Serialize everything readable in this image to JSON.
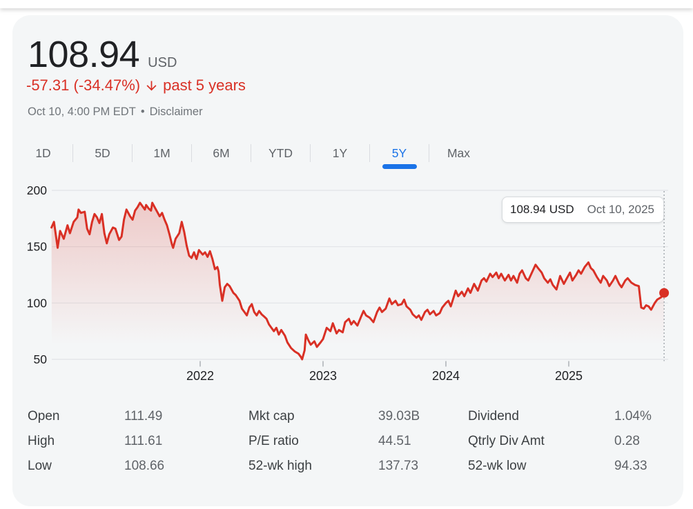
{
  "header": {
    "price": "108.94",
    "currency": "USD",
    "change_text": "-57.31 (-34.47%)",
    "change_arrow_icon": "arrow-down",
    "change_period": "past 5 years",
    "change_color": "#d93025",
    "timestamp": "Oct 10, 4:00 PM EDT",
    "separator": "•",
    "disclaimer_label": "Disclaimer"
  },
  "tabs": {
    "accent_color": "#1a73e8",
    "items": [
      {
        "label": "1D",
        "selected": false
      },
      {
        "label": "5D",
        "selected": false
      },
      {
        "label": "1M",
        "selected": false
      },
      {
        "label": "6M",
        "selected": false
      },
      {
        "label": "YTD",
        "selected": false
      },
      {
        "label": "1Y",
        "selected": false
      },
      {
        "label": "5Y",
        "selected": true
      },
      {
        "label": "Max",
        "selected": false
      }
    ]
  },
  "tooltip": {
    "price": "108.94 USD",
    "date": "Oct 10, 2025"
  },
  "chart_data": {
    "type": "line",
    "x_unit": "decimal-year",
    "xlim": [
      2020.79,
      2025.79
    ],
    "ylim": [
      50,
      200
    ],
    "grid": true,
    "y_ticks": [
      200,
      150,
      100,
      50
    ],
    "x_ticks": [
      {
        "t": 2022,
        "label": "2022"
      },
      {
        "t": 2023,
        "label": "2023"
      },
      {
        "t": 2024,
        "label": "2024"
      },
      {
        "t": 2025,
        "label": "2025"
      }
    ],
    "line_color": "#d93025",
    "grid_color": "#e1e4e7",
    "tick_color": "#9aa0a6",
    "cursor": {
      "t": 2025.776,
      "price": 108.94,
      "date": "Oct 10, 2025"
    },
    "series": [
      {
        "name": "Price (USD)",
        "points": [
          [
            2020.79,
            167
          ],
          [
            2020.81,
            172
          ],
          [
            2020.84,
            149
          ],
          [
            2020.86,
            164
          ],
          [
            2020.89,
            157
          ],
          [
            2020.92,
            169
          ],
          [
            2020.94,
            162
          ],
          [
            2020.97,
            172
          ],
          [
            2021.0,
            176
          ],
          [
            2021.01,
            183
          ],
          [
            2021.03,
            180
          ],
          [
            2021.06,
            181
          ],
          [
            2021.08,
            166
          ],
          [
            2021.1,
            161
          ],
          [
            2021.12,
            172
          ],
          [
            2021.14,
            179
          ],
          [
            2021.16,
            176
          ],
          [
            2021.18,
            171
          ],
          [
            2021.2,
            179
          ],
          [
            2021.22,
            162
          ],
          [
            2021.24,
            153
          ],
          [
            2021.26,
            161
          ],
          [
            2021.29,
            167
          ],
          [
            2021.31,
            166
          ],
          [
            2021.34,
            156
          ],
          [
            2021.36,
            159
          ],
          [
            2021.38,
            174
          ],
          [
            2021.4,
            183
          ],
          [
            2021.43,
            177
          ],
          [
            2021.45,
            174
          ],
          [
            2021.47,
            182
          ],
          [
            2021.49,
            185
          ],
          [
            2021.51,
            189
          ],
          [
            2021.53,
            186
          ],
          [
            2021.55,
            183
          ],
          [
            2021.56,
            187
          ],
          [
            2021.58,
            184
          ],
          [
            2021.6,
            182
          ],
          [
            2021.61,
            189
          ],
          [
            2021.63,
            185
          ],
          [
            2021.65,
            181
          ],
          [
            2021.67,
            177
          ],
          [
            2021.69,
            180
          ],
          [
            2021.71,
            174
          ],
          [
            2021.73,
            169
          ],
          [
            2021.75,
            161
          ],
          [
            2021.77,
            152
          ],
          [
            2021.78,
            149
          ],
          [
            2021.8,
            157
          ],
          [
            2021.83,
            162
          ],
          [
            2021.85,
            172
          ],
          [
            2021.87,
            163
          ],
          [
            2021.89,
            151
          ],
          [
            2021.91,
            142
          ],
          [
            2021.93,
            140
          ],
          [
            2021.95,
            145
          ],
          [
            2021.97,
            139
          ],
          [
            2021.99,
            147
          ],
          [
            2022.02,
            143
          ],
          [
            2022.04,
            145
          ],
          [
            2022.06,
            141
          ],
          [
            2022.08,
            146
          ],
          [
            2022.1,
            139
          ],
          [
            2022.12,
            130
          ],
          [
            2022.14,
            132
          ],
          [
            2022.15,
            128
          ],
          [
            2022.16,
            116
          ],
          [
            2022.18,
            102
          ],
          [
            2022.2,
            114
          ],
          [
            2022.22,
            117
          ],
          [
            2022.24,
            115
          ],
          [
            2022.27,
            109
          ],
          [
            2022.29,
            107
          ],
          [
            2022.32,
            102
          ],
          [
            2022.34,
            95
          ],
          [
            2022.36,
            92
          ],
          [
            2022.38,
            89
          ],
          [
            2022.4,
            96
          ],
          [
            2022.42,
            99
          ],
          [
            2022.44,
            92
          ],
          [
            2022.46,
            89
          ],
          [
            2022.48,
            93
          ],
          [
            2022.5,
            90
          ],
          [
            2022.52,
            88
          ],
          [
            2022.54,
            86
          ],
          [
            2022.56,
            81
          ],
          [
            2022.58,
            78
          ],
          [
            2022.6,
            75
          ],
          [
            2022.62,
            78
          ],
          [
            2022.64,
            72
          ],
          [
            2022.66,
            76
          ],
          [
            2022.69,
            71
          ],
          [
            2022.71,
            65
          ],
          [
            2022.74,
            60
          ],
          [
            2022.77,
            57
          ],
          [
            2022.8,
            55
          ],
          [
            2022.82,
            52
          ],
          [
            2022.83,
            50
          ],
          [
            2022.85,
            58
          ],
          [
            2022.86,
            72
          ],
          [
            2022.88,
            67
          ],
          [
            2022.9,
            63
          ],
          [
            2022.93,
            66
          ],
          [
            2022.95,
            61
          ],
          [
            2022.98,
            65
          ],
          [
            2023.0,
            68
          ],
          [
            2023.03,
            78
          ],
          [
            2023.06,
            75
          ],
          [
            2023.08,
            82
          ],
          [
            2023.11,
            73
          ],
          [
            2023.13,
            76
          ],
          [
            2023.16,
            74
          ],
          [
            2023.18,
            83
          ],
          [
            2023.21,
            86
          ],
          [
            2023.23,
            81
          ],
          [
            2023.25,
            84
          ],
          [
            2023.28,
            80
          ],
          [
            2023.31,
            88
          ],
          [
            2023.33,
            93
          ],
          [
            2023.35,
            89
          ],
          [
            2023.38,
            87
          ],
          [
            2023.41,
            83
          ],
          [
            2023.44,
            92
          ],
          [
            2023.46,
            96
          ],
          [
            2023.48,
            92
          ],
          [
            2023.51,
            95
          ],
          [
            2023.54,
            104
          ],
          [
            2023.56,
            99
          ],
          [
            2023.59,
            102
          ],
          [
            2023.61,
            98
          ],
          [
            2023.64,
            99
          ],
          [
            2023.66,
            103
          ],
          [
            2023.68,
            97
          ],
          [
            2023.71,
            94
          ],
          [
            2023.73,
            90
          ],
          [
            2023.76,
            87
          ],
          [
            2023.78,
            89
          ],
          [
            2023.8,
            85
          ],
          [
            2023.83,
            92
          ],
          [
            2023.85,
            94
          ],
          [
            2023.87,
            90
          ],
          [
            2023.9,
            93
          ],
          [
            2023.92,
            89
          ],
          [
            2023.95,
            91
          ],
          [
            2023.97,
            96
          ],
          [
            2024.0,
            100
          ],
          [
            2024.02,
            102
          ],
          [
            2024.04,
            97
          ],
          [
            2024.06,
            104
          ],
          [
            2024.08,
            111
          ],
          [
            2024.1,
            106
          ],
          [
            2024.13,
            110
          ],
          [
            2024.15,
            106
          ],
          [
            2024.18,
            113
          ],
          [
            2024.2,
            109
          ],
          [
            2024.23,
            117
          ],
          [
            2024.26,
            111
          ],
          [
            2024.29,
            120
          ],
          [
            2024.31,
            122
          ],
          [
            2024.33,
            119
          ],
          [
            2024.36,
            126
          ],
          [
            2024.38,
            123
          ],
          [
            2024.41,
            127
          ],
          [
            2024.43,
            122
          ],
          [
            2024.45,
            126
          ],
          [
            2024.48,
            120
          ],
          [
            2024.51,
            125
          ],
          [
            2024.53,
            120
          ],
          [
            2024.55,
            124
          ],
          [
            2024.58,
            118
          ],
          [
            2024.6,
            126
          ],
          [
            2024.62,
            129
          ],
          [
            2024.65,
            122
          ],
          [
            2024.67,
            120
          ],
          [
            2024.7,
            127
          ],
          [
            2024.73,
            134
          ],
          [
            2024.75,
            131
          ],
          [
            2024.78,
            127
          ],
          [
            2024.8,
            122
          ],
          [
            2024.83,
            118
          ],
          [
            2024.85,
            121
          ],
          [
            2024.87,
            116
          ],
          [
            2024.9,
            112
          ],
          [
            2024.93,
            124
          ],
          [
            2024.96,
            117
          ],
          [
            2024.98,
            121
          ],
          [
            2025.01,
            127
          ],
          [
            2025.03,
            120
          ],
          [
            2025.06,
            125
          ],
          [
            2025.08,
            129
          ],
          [
            2025.1,
            126
          ],
          [
            2025.13,
            132
          ],
          [
            2025.16,
            136
          ],
          [
            2025.18,
            131
          ],
          [
            2025.2,
            129
          ],
          [
            2025.23,
            123
          ],
          [
            2025.26,
            118
          ],
          [
            2025.28,
            124
          ],
          [
            2025.31,
            120
          ],
          [
            2025.33,
            115
          ],
          [
            2025.36,
            120
          ],
          [
            2025.38,
            124
          ],
          [
            2025.41,
            117
          ],
          [
            2025.43,
            114
          ],
          [
            2025.46,
            120
          ],
          [
            2025.48,
            122
          ],
          [
            2025.51,
            118
          ],
          [
            2025.54,
            116
          ],
          [
            2025.57,
            115
          ],
          [
            2025.59,
            96
          ],
          [
            2025.61,
            95
          ],
          [
            2025.63,
            98
          ],
          [
            2025.65,
            97
          ],
          [
            2025.67,
            94
          ],
          [
            2025.7,
            100
          ],
          [
            2025.72,
            103
          ],
          [
            2025.75,
            105
          ],
          [
            2025.776,
            108.94
          ]
        ]
      }
    ]
  },
  "stats": {
    "columns": [
      [
        {
          "label": "Open",
          "value": "111.49"
        },
        {
          "label": "High",
          "value": "111.61"
        },
        {
          "label": "Low",
          "value": "108.66"
        }
      ],
      [
        {
          "label": "Mkt cap",
          "value": "39.03B"
        },
        {
          "label": "P/E ratio",
          "value": "44.51"
        },
        {
          "label": "52-wk high",
          "value": "137.73"
        }
      ],
      [
        {
          "label": "Dividend",
          "value": "1.04%"
        },
        {
          "label": "Qtrly Div Amt",
          "value": "0.28"
        },
        {
          "label": "52-wk low",
          "value": "94.33"
        }
      ]
    ]
  }
}
